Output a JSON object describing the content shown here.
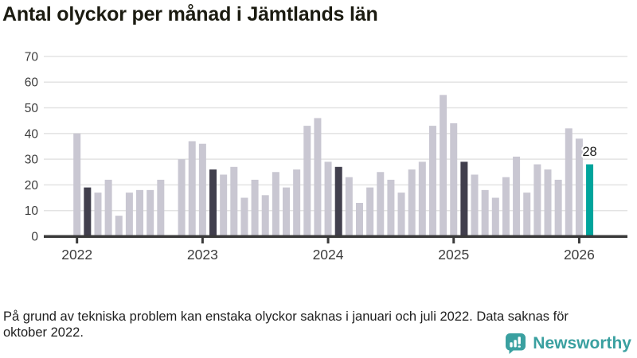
{
  "footnote": "På grund av tekniska problem kan enstaka olyckor saknas i januari och juli 2022. Data saknas för oktober 2022.",
  "branding": {
    "name": "Newsworthy",
    "logo_icon": "bar-chart-speech-bubble-icon",
    "color": "#3aa0a0"
  },
  "colors": {
    "bar": "#c9c7d2",
    "bar_dark": "#413f4d",
    "bar_accent": "#00a49c",
    "axis": "#3a3a3a",
    "grid": "#e3e3e3",
    "label": "#3d3d3d",
    "annotation": "#1c1c1c"
  },
  "chart_data": {
    "type": "bar",
    "title": "Antal olyckor per månad i Jämtlands län",
    "xlabel": "",
    "ylabel": "",
    "ylim": [
      0,
      70
    ],
    "yticks": [
      0,
      10,
      20,
      30,
      40,
      50,
      60,
      70
    ],
    "grid": "horizontal",
    "x_tick_labels": [
      "2022",
      "2023",
      "2024",
      "2025",
      "2026"
    ],
    "missing_months": [
      "2022-10"
    ],
    "annotation": {
      "text": "28",
      "month": "2026-02"
    },
    "months": [
      {
        "month": "2022-01",
        "value": 40,
        "role": "normal"
      },
      {
        "month": "2022-02",
        "value": 19,
        "role": "dark"
      },
      {
        "month": "2022-03",
        "value": 17,
        "role": "normal"
      },
      {
        "month": "2022-04",
        "value": 22,
        "role": "normal"
      },
      {
        "month": "2022-05",
        "value": 8,
        "role": "normal"
      },
      {
        "month": "2022-06",
        "value": 17,
        "role": "normal"
      },
      {
        "month": "2022-07",
        "value": 18,
        "role": "normal"
      },
      {
        "month": "2022-08",
        "value": 18,
        "role": "normal"
      },
      {
        "month": "2022-09",
        "value": 22,
        "role": "normal"
      },
      {
        "month": "2022-10",
        "value": null,
        "role": "normal"
      },
      {
        "month": "2022-11",
        "value": 30,
        "role": "normal"
      },
      {
        "month": "2022-12",
        "value": 37,
        "role": "normal"
      },
      {
        "month": "2023-01",
        "value": 36,
        "role": "normal"
      },
      {
        "month": "2023-02",
        "value": 26,
        "role": "dark"
      },
      {
        "month": "2023-03",
        "value": 24,
        "role": "normal"
      },
      {
        "month": "2023-04",
        "value": 27,
        "role": "normal"
      },
      {
        "month": "2023-05",
        "value": 15,
        "role": "normal"
      },
      {
        "month": "2023-06",
        "value": 22,
        "role": "normal"
      },
      {
        "month": "2023-07",
        "value": 16,
        "role": "normal"
      },
      {
        "month": "2023-08",
        "value": 25,
        "role": "normal"
      },
      {
        "month": "2023-09",
        "value": 19,
        "role": "normal"
      },
      {
        "month": "2023-10",
        "value": 26,
        "role": "normal"
      },
      {
        "month": "2023-11",
        "value": 43,
        "role": "normal"
      },
      {
        "month": "2023-12",
        "value": 46,
        "role": "normal"
      },
      {
        "month": "2024-01",
        "value": 29,
        "role": "normal"
      },
      {
        "month": "2024-02",
        "value": 27,
        "role": "dark"
      },
      {
        "month": "2024-03",
        "value": 23,
        "role": "normal"
      },
      {
        "month": "2024-04",
        "value": 13,
        "role": "normal"
      },
      {
        "month": "2024-05",
        "value": 19,
        "role": "normal"
      },
      {
        "month": "2024-06",
        "value": 25,
        "role": "normal"
      },
      {
        "month": "2024-07",
        "value": 22,
        "role": "normal"
      },
      {
        "month": "2024-08",
        "value": 17,
        "role": "normal"
      },
      {
        "month": "2024-09",
        "value": 26,
        "role": "normal"
      },
      {
        "month": "2024-10",
        "value": 29,
        "role": "normal"
      },
      {
        "month": "2024-11",
        "value": 43,
        "role": "normal"
      },
      {
        "month": "2024-12",
        "value": 55,
        "role": "normal"
      },
      {
        "month": "2025-01",
        "value": 44,
        "role": "normal"
      },
      {
        "month": "2025-02",
        "value": 29,
        "role": "dark"
      },
      {
        "month": "2025-03",
        "value": 24,
        "role": "normal"
      },
      {
        "month": "2025-04",
        "value": 18,
        "role": "normal"
      },
      {
        "month": "2025-05",
        "value": 15,
        "role": "normal"
      },
      {
        "month": "2025-06",
        "value": 23,
        "role": "normal"
      },
      {
        "month": "2025-07",
        "value": 31,
        "role": "normal"
      },
      {
        "month": "2025-08",
        "value": 17,
        "role": "normal"
      },
      {
        "month": "2025-09",
        "value": 28,
        "role": "normal"
      },
      {
        "month": "2025-10",
        "value": 26,
        "role": "normal"
      },
      {
        "month": "2025-11",
        "value": 22,
        "role": "normal"
      },
      {
        "month": "2025-12",
        "value": 42,
        "role": "normal"
      },
      {
        "month": "2026-01",
        "value": 38,
        "role": "normal"
      },
      {
        "month": "2026-02",
        "value": 28,
        "role": "accent"
      }
    ]
  }
}
